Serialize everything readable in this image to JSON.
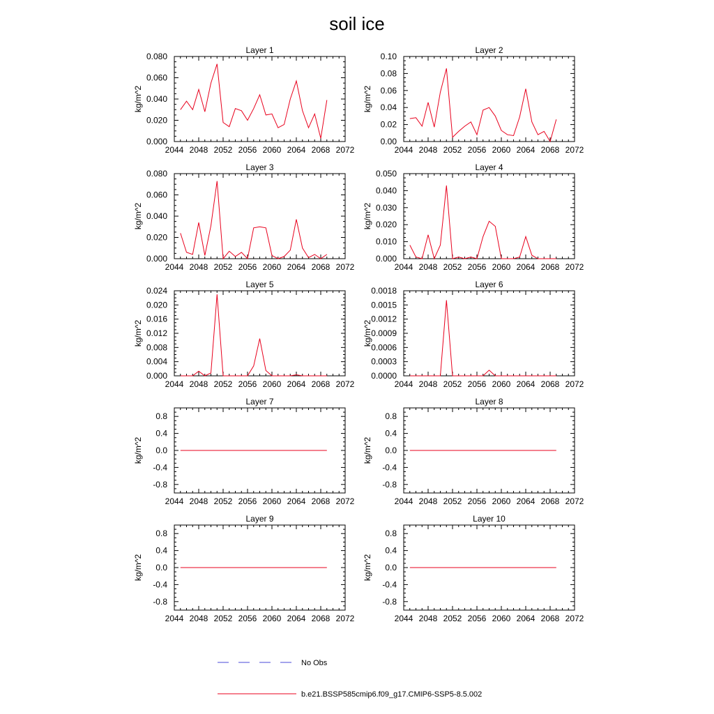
{
  "title": "soil ice",
  "colors": {
    "model": "#e8001c",
    "obs": "#4a4ad8"
  },
  "legend": [
    {
      "label": "No Obs",
      "style": "dashed",
      "color": "#4a4ad8"
    },
    {
      "label": "b.e21.BSSP585cmip6.f09_g17.CMIP6-SSP5-8.5.002",
      "style": "solid",
      "color": "#e8001c"
    }
  ],
  "chart_data": [
    {
      "type": "line",
      "title": "Layer 1",
      "ylabel": "kg/m^2",
      "xlim": [
        2044,
        2072
      ],
      "xticks": [
        2044,
        2048,
        2052,
        2056,
        2060,
        2064,
        2068,
        2072
      ],
      "ylim": [
        0,
        0.08
      ],
      "yticks": [
        0,
        0.02,
        0.04,
        0.06,
        0.08
      ],
      "yticklabels": [
        "0.000",
        "0.020",
        "0.040",
        "0.060",
        "0.080"
      ],
      "series": [
        {
          "name": "b.e21.BSSP585cmip6.f09_g17.CMIP6-SSP5-8.5.002",
          "x": [
            2045,
            2046,
            2047,
            2048,
            2049,
            2050,
            2051,
            2052,
            2053,
            2054,
            2055,
            2056,
            2057,
            2058,
            2059,
            2060,
            2061,
            2062,
            2063,
            2064,
            2065,
            2066,
            2067,
            2068,
            2069
          ],
          "values": [
            0.03,
            0.038,
            0.03,
            0.049,
            0.028,
            0.055,
            0.073,
            0.018,
            0.014,
            0.031,
            0.029,
            0.02,
            0.031,
            0.044,
            0.025,
            0.026,
            0.013,
            0.016,
            0.04,
            0.057,
            0.029,
            0.013,
            0.026,
            0.003,
            0.039
          ]
        }
      ]
    },
    {
      "type": "line",
      "title": "Layer 2",
      "ylabel": "kg/m^2",
      "xlim": [
        2044,
        2072
      ],
      "xticks": [
        2044,
        2048,
        2052,
        2056,
        2060,
        2064,
        2068,
        2072
      ],
      "ylim": [
        0,
        0.1
      ],
      "yticks": [
        0,
        0.02,
        0.04,
        0.06,
        0.08,
        0.1
      ],
      "yticklabels": [
        "0.00",
        "0.02",
        "0.04",
        "0.06",
        "0.08",
        "0.10"
      ],
      "series": [
        {
          "name": "b.e21.BSSP585cmip6.f09_g17.CMIP6-SSP5-8.5.002",
          "x": [
            2045,
            2046,
            2047,
            2048,
            2049,
            2050,
            2051,
            2052,
            2053,
            2054,
            2055,
            2056,
            2057,
            2058,
            2059,
            2060,
            2061,
            2062,
            2063,
            2064,
            2065,
            2066,
            2067,
            2068,
            2069
          ],
          "values": [
            0.027,
            0.028,
            0.018,
            0.046,
            0.017,
            0.058,
            0.086,
            0.005,
            0.012,
            0.018,
            0.023,
            0.008,
            0.037,
            0.04,
            0.03,
            0.013,
            0.008,
            0.007,
            0.029,
            0.062,
            0.023,
            0.008,
            0.012,
            0.0,
            0.026
          ]
        }
      ]
    },
    {
      "type": "line",
      "title": "Layer 3",
      "ylabel": "kg/m^2",
      "xlim": [
        2044,
        2072
      ],
      "xticks": [
        2044,
        2048,
        2052,
        2056,
        2060,
        2064,
        2068,
        2072
      ],
      "ylim": [
        0,
        0.08
      ],
      "yticks": [
        0,
        0.02,
        0.04,
        0.06,
        0.08
      ],
      "yticklabels": [
        "0.000",
        "0.020",
        "0.040",
        "0.060",
        "0.080"
      ],
      "series": [
        {
          "name": "b.e21.BSSP585cmip6.f09_g17.CMIP6-SSP5-8.5.002",
          "x": [
            2045,
            2046,
            2047,
            2048,
            2049,
            2050,
            2051,
            2052,
            2053,
            2054,
            2055,
            2056,
            2057,
            2058,
            2059,
            2060,
            2061,
            2062,
            2063,
            2064,
            2065,
            2066,
            2067,
            2068,
            2069
          ],
          "values": [
            0.024,
            0.006,
            0.004,
            0.034,
            0.003,
            0.031,
            0.073,
            0.0,
            0.007,
            0.002,
            0.006,
            0.0,
            0.029,
            0.03,
            0.029,
            0.003,
            0.0,
            0.002,
            0.008,
            0.037,
            0.01,
            0.001,
            0.004,
            0.0,
            0.004
          ]
        }
      ]
    },
    {
      "type": "line",
      "title": "Layer 4",
      "ylabel": "kg/m^2",
      "xlim": [
        2044,
        2072
      ],
      "xticks": [
        2044,
        2048,
        2052,
        2056,
        2060,
        2064,
        2068,
        2072
      ],
      "ylim": [
        0,
        0.05
      ],
      "yticks": [
        0,
        0.01,
        0.02,
        0.03,
        0.04,
        0.05
      ],
      "yticklabels": [
        "0.000",
        "0.010",
        "0.020",
        "0.030",
        "0.040",
        "0.050"
      ],
      "series": [
        {
          "name": "b.e21.BSSP585cmip6.f09_g17.CMIP6-SSP5-8.5.002",
          "x": [
            2045,
            2046,
            2047,
            2048,
            2049,
            2050,
            2051,
            2052,
            2053,
            2054,
            2055,
            2056,
            2057,
            2058,
            2059,
            2060,
            2061,
            2062,
            2063,
            2064,
            2065,
            2066,
            2067,
            2068,
            2069
          ],
          "values": [
            0.008,
            0.001,
            0.0,
            0.014,
            0.0,
            0.008,
            0.043,
            0.0,
            0.001,
            0.0,
            0.001,
            0.0,
            0.013,
            0.022,
            0.019,
            0.0,
            0.0,
            0.0,
            0.001,
            0.013,
            0.002,
            0.0,
            0.0,
            0.0,
            0.0
          ]
        }
      ]
    },
    {
      "type": "line",
      "title": "Layer 5",
      "ylabel": "kg/m^2",
      "xlim": [
        2044,
        2072
      ],
      "xticks": [
        2044,
        2048,
        2052,
        2056,
        2060,
        2064,
        2068,
        2072
      ],
      "ylim": [
        0,
        0.024
      ],
      "yticks": [
        0,
        0.004,
        0.008,
        0.012,
        0.016,
        0.02,
        0.024
      ],
      "yticklabels": [
        "0.000",
        "0.004",
        "0.008",
        "0.012",
        "0.016",
        "0.020",
        "0.024"
      ],
      "series": [
        {
          "name": "b.e21.BSSP585cmip6.f09_g17.CMIP6-SSP5-8.5.002",
          "x": [
            2045,
            2046,
            2047,
            2048,
            2049,
            2050,
            2051,
            2052,
            2053,
            2054,
            2055,
            2056,
            2057,
            2058,
            2059,
            2060,
            2061,
            2062,
            2063,
            2064,
            2065,
            2066,
            2067,
            2068,
            2069
          ],
          "values": [
            0.0,
            0.0,
            0.0,
            0.0013,
            0.0,
            0.0008,
            0.023,
            0.0,
            0.0,
            0.0,
            0.0,
            0.0,
            0.0028,
            0.0105,
            0.0015,
            0.0,
            0.0,
            0.0,
            0.0,
            0.0003,
            0.0,
            0.0,
            0.0,
            0.0,
            0.0
          ]
        }
      ]
    },
    {
      "type": "line",
      "title": "Layer 6",
      "ylabel": "kg/m^2",
      "xlim": [
        2044,
        2072
      ],
      "xticks": [
        2044,
        2048,
        2052,
        2056,
        2060,
        2064,
        2068,
        2072
      ],
      "ylim": [
        0,
        0.0018
      ],
      "yticks": [
        0,
        0.0003,
        0.0006,
        0.0009,
        0.0012,
        0.0015,
        0.0018
      ],
      "yticklabels": [
        "0.0000",
        "0.0003",
        "0.0006",
        "0.0009",
        "0.0012",
        "0.0015",
        "0.0018"
      ],
      "series": [
        {
          "name": "b.e21.BSSP585cmip6.f09_g17.CMIP6-SSP5-8.5.002",
          "x": [
            2045,
            2046,
            2047,
            2048,
            2049,
            2050,
            2051,
            2052,
            2053,
            2054,
            2055,
            2056,
            2057,
            2058,
            2059,
            2060,
            2061,
            2062,
            2063,
            2064,
            2065,
            2066,
            2067,
            2068,
            2069
          ],
          "values": [
            0,
            0,
            0,
            0,
            0,
            0,
            0.0016,
            0,
            0,
            0,
            0,
            0,
            0,
            0.00012,
            0,
            0,
            0,
            0,
            0,
            0,
            0,
            0,
            0,
            0,
            0
          ]
        }
      ]
    },
    {
      "type": "line",
      "title": "Layer 7",
      "ylabel": "kg/m^2",
      "xlim": [
        2044,
        2072
      ],
      "xticks": [
        2044,
        2048,
        2052,
        2056,
        2060,
        2064,
        2068,
        2072
      ],
      "ylim": [
        -1,
        1
      ],
      "yticks": [
        -0.8,
        -0.4,
        0,
        0.4,
        0.8
      ],
      "yticklabels": [
        "-0.8",
        "-0.4",
        "0.0",
        "0.4",
        "0.8"
      ],
      "series": [
        {
          "name": "b.e21.BSSP585cmip6.f09_g17.CMIP6-SSP5-8.5.002",
          "x": [
            2045,
            2046,
            2047,
            2048,
            2049,
            2050,
            2051,
            2052,
            2053,
            2054,
            2055,
            2056,
            2057,
            2058,
            2059,
            2060,
            2061,
            2062,
            2063,
            2064,
            2065,
            2066,
            2067,
            2068,
            2069
          ],
          "values": [
            0,
            0,
            0,
            0,
            0,
            0,
            0,
            0,
            0,
            0,
            0,
            0,
            0,
            0,
            0,
            0,
            0,
            0,
            0,
            0,
            0,
            0,
            0,
            0,
            0
          ]
        }
      ]
    },
    {
      "type": "line",
      "title": "Layer 8",
      "ylabel": "kg/m^2",
      "xlim": [
        2044,
        2072
      ],
      "xticks": [
        2044,
        2048,
        2052,
        2056,
        2060,
        2064,
        2068,
        2072
      ],
      "ylim": [
        -1,
        1
      ],
      "yticks": [
        -0.8,
        -0.4,
        0,
        0.4,
        0.8
      ],
      "yticklabels": [
        "-0.8",
        "-0.4",
        "0.0",
        "0.4",
        "0.8"
      ],
      "series": [
        {
          "name": "b.e21.BSSP585cmip6.f09_g17.CMIP6-SSP5-8.5.002",
          "x": [
            2045,
            2046,
            2047,
            2048,
            2049,
            2050,
            2051,
            2052,
            2053,
            2054,
            2055,
            2056,
            2057,
            2058,
            2059,
            2060,
            2061,
            2062,
            2063,
            2064,
            2065,
            2066,
            2067,
            2068,
            2069
          ],
          "values": [
            0,
            0,
            0,
            0,
            0,
            0,
            0,
            0,
            0,
            0,
            0,
            0,
            0,
            0,
            0,
            0,
            0,
            0,
            0,
            0,
            0,
            0,
            0,
            0,
            0
          ]
        }
      ]
    },
    {
      "type": "line",
      "title": "Layer 9",
      "ylabel": "kg/m^2",
      "xlim": [
        2044,
        2072
      ],
      "xticks": [
        2044,
        2048,
        2052,
        2056,
        2060,
        2064,
        2068,
        2072
      ],
      "ylim": [
        -1,
        1
      ],
      "yticks": [
        -0.8,
        -0.4,
        0,
        0.4,
        0.8
      ],
      "yticklabels": [
        "-0.8",
        "-0.4",
        "0.0",
        "0.4",
        "0.8"
      ],
      "series": [
        {
          "name": "b.e21.BSSP585cmip6.f09_g17.CMIP6-SSP5-8.5.002",
          "x": [
            2045,
            2046,
            2047,
            2048,
            2049,
            2050,
            2051,
            2052,
            2053,
            2054,
            2055,
            2056,
            2057,
            2058,
            2059,
            2060,
            2061,
            2062,
            2063,
            2064,
            2065,
            2066,
            2067,
            2068,
            2069
          ],
          "values": [
            0,
            0,
            0,
            0,
            0,
            0,
            0,
            0,
            0,
            0,
            0,
            0,
            0,
            0,
            0,
            0,
            0,
            0,
            0,
            0,
            0,
            0,
            0,
            0,
            0
          ]
        }
      ]
    },
    {
      "type": "line",
      "title": "Layer 10",
      "ylabel": "kg/m^2",
      "xlim": [
        2044,
        2072
      ],
      "xticks": [
        2044,
        2048,
        2052,
        2056,
        2060,
        2064,
        2068,
        2072
      ],
      "ylim": [
        -1,
        1
      ],
      "yticks": [
        -0.8,
        -0.4,
        0,
        0.4,
        0.8
      ],
      "yticklabels": [
        "-0.8",
        "-0.4",
        "0.0",
        "0.4",
        "0.8"
      ],
      "series": [
        {
          "name": "b.e21.BSSP585cmip6.f09_g17.CMIP6-SSP5-8.5.002",
          "x": [
            2045,
            2046,
            2047,
            2048,
            2049,
            2050,
            2051,
            2052,
            2053,
            2054,
            2055,
            2056,
            2057,
            2058,
            2059,
            2060,
            2061,
            2062,
            2063,
            2064,
            2065,
            2066,
            2067,
            2068,
            2069
          ],
          "values": [
            0,
            0,
            0,
            0,
            0,
            0,
            0,
            0,
            0,
            0,
            0,
            0,
            0,
            0,
            0,
            0,
            0,
            0,
            0,
            0,
            0,
            0,
            0,
            0,
            0
          ]
        }
      ]
    }
  ]
}
